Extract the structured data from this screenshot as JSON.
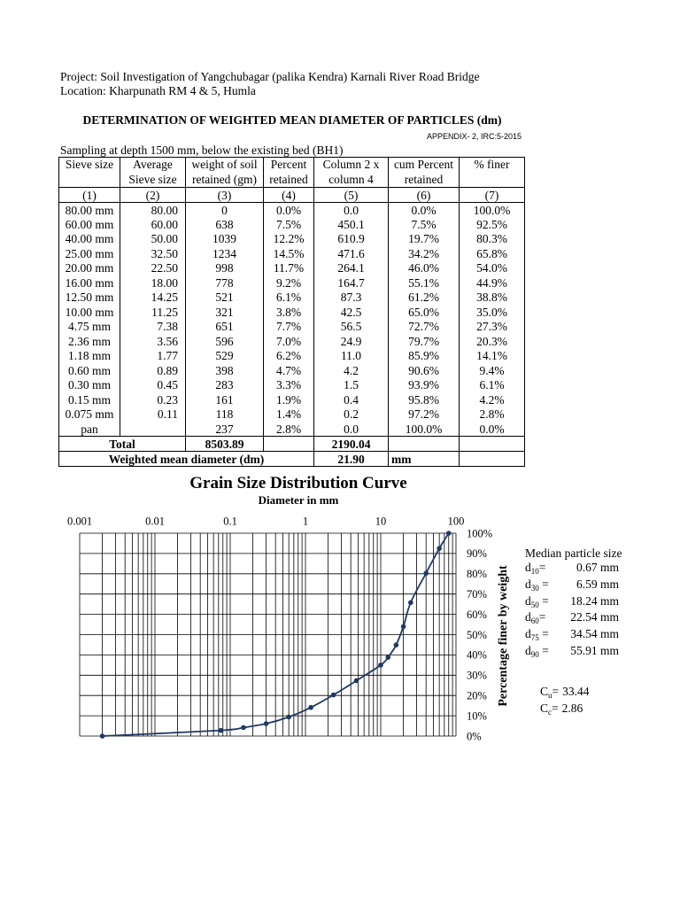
{
  "header": {
    "project": "Project: Soil Investigation of Yangchubagar (palika Kendra) Karnali River Road Bridge",
    "location": "Location: Kharpunath RM 4 & 5, Humla"
  },
  "title": "DETERMINATION OF WEIGHTED MEAN DIAMETER OF PARTICLES (dm)",
  "appendix": "APPENDIX- 2, IRC:5-2015",
  "sampling": "Sampling at depth 1500 mm, below the existing bed (BH1)",
  "table": {
    "headers": [
      [
        "Sieve size"
      ],
      [
        "Average",
        "Sieve size"
      ],
      [
        "weight of soil",
        "retained (gm)"
      ],
      [
        "Percent",
        "retained"
      ],
      [
        "Column 2 x",
        "column 4"
      ],
      [
        "cum Percent",
        "retained"
      ],
      [
        "% finer"
      ]
    ],
    "column_numbers": [
      "(1)",
      "(2)",
      "(3)",
      "(4)",
      "(5)",
      "(6)",
      "(7)"
    ],
    "rows": [
      [
        "80.00 mm",
        "80.00",
        "0",
        "0.0%",
        "0.0",
        "0.0%",
        "100.0%"
      ],
      [
        "60.00 mm",
        "60.00",
        "638",
        "7.5%",
        "450.1",
        "7.5%",
        "92.5%"
      ],
      [
        "40.00 mm",
        "50.00",
        "1039",
        "12.2%",
        "610.9",
        "19.7%",
        "80.3%"
      ],
      [
        "25.00 mm",
        "32.50",
        "1234",
        "14.5%",
        "471.6",
        "34.2%",
        "65.8%"
      ],
      [
        "20.00 mm",
        "22.50",
        "998",
        "11.7%",
        "264.1",
        "46.0%",
        "54.0%"
      ],
      [
        "16.00 mm",
        "18.00",
        "778",
        "9.2%",
        "164.7",
        "55.1%",
        "44.9%"
      ],
      [
        "12.50 mm",
        "14.25",
        "521",
        "6.1%",
        "87.3",
        "61.2%",
        "38.8%"
      ],
      [
        "10.00 mm",
        "11.25",
        "321",
        "3.8%",
        "42.5",
        "65.0%",
        "35.0%"
      ],
      [
        "4.75 mm",
        "7.38",
        "651",
        "7.7%",
        "56.5",
        "72.7%",
        "27.3%"
      ],
      [
        "2.36 mm",
        "3.56",
        "596",
        "7.0%",
        "24.9",
        "79.7%",
        "20.3%"
      ],
      [
        "1.18 mm",
        "1.77",
        "529",
        "6.2%",
        "11.0",
        "85.9%",
        "14.1%"
      ],
      [
        "0.60 mm",
        "0.89",
        "398",
        "4.7%",
        "4.2",
        "90.6%",
        "9.4%"
      ],
      [
        "0.30 mm",
        "0.45",
        "283",
        "3.3%",
        "1.5",
        "93.9%",
        "6.1%"
      ],
      [
        "0.15 mm",
        "0.23",
        "161",
        "1.9%",
        "0.4",
        "95.8%",
        "4.2%"
      ],
      [
        "0.075 mm",
        "0.11",
        "118",
        "1.4%",
        "0.2",
        "97.2%",
        "2.8%"
      ],
      [
        "pan",
        "",
        "237",
        "2.8%",
        "0.0",
        "100.0%",
        "0.0%"
      ]
    ],
    "total": {
      "label": "Total",
      "weight": "8503.89",
      "column_5": "2190.04"
    },
    "weighted_mean": {
      "label": "Weighted mean diameter (dm)",
      "value": "21.90",
      "unit": "mm"
    }
  },
  "chart_data": {
    "type": "line",
    "title": "Grain Size Distribution Curve",
    "xlabel": "Diameter in mm",
    "ylabel": "Percentage finer by weight",
    "x_scale": "log",
    "xlim": [
      0.001,
      100
    ],
    "ylim": [
      0,
      100
    ],
    "x_ticks": [
      "0.001",
      "0.01",
      "0.1",
      "1",
      "10",
      "100"
    ],
    "y_ticks": [
      "100%",
      "90%",
      "80%",
      "70%",
      "60%",
      "50%",
      "40%",
      "30%",
      "20%",
      "10%",
      "0%"
    ],
    "x_axis_side": "top",
    "y_axis_side": "right",
    "grid": true,
    "line_color": "#1F3864",
    "series": [
      {
        "x": [
          0.002,
          0.075,
          0.15,
          0.3,
          0.6,
          1.18,
          2.36,
          4.75,
          10,
          12.5,
          16,
          20,
          25,
          40,
          60,
          80
        ],
        "y": [
          0,
          2.8,
          4.2,
          6.1,
          9.4,
          14.1,
          20.3,
          27.3,
          35.0,
          38.8,
          44.9,
          54.0,
          65.8,
          80.3,
          92.5,
          100
        ],
        "markers": true
      }
    ]
  },
  "particle_sizes": {
    "heading": "Median particle size",
    "items": [
      {
        "symbol": "d",
        "sub": "10",
        "eq": "=",
        "value": "0.67 mm"
      },
      {
        "symbol": "d",
        "sub": "30",
        "eq": " =",
        "value": "6.59 mm"
      },
      {
        "symbol": "d",
        "sub": "50",
        "eq": " =",
        "value": "18.24 mm"
      },
      {
        "symbol": "d",
        "sub": "60",
        "eq": "=",
        "value": "22.54 mm"
      },
      {
        "symbol": "d",
        "sub": "75",
        "eq": " =",
        "value": "34.54 mm"
      },
      {
        "symbol": "d",
        "sub": "90",
        "eq": " =",
        "value": "55.91 mm"
      }
    ],
    "coefficients": [
      {
        "symbol": "C",
        "sub": "u",
        "eq": "=",
        "value": "33.44"
      },
      {
        "symbol": "C",
        "sub": "c",
        "eq": "=",
        "value": "2.86"
      }
    ]
  }
}
